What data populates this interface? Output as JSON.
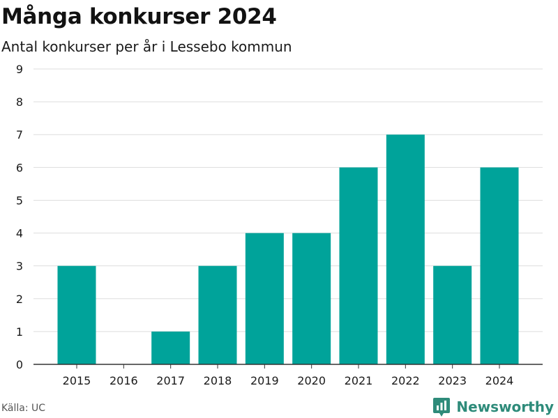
{
  "header": {
    "title": "Många konkurser 2024",
    "subtitle": "Antal konkurser per år i Lessebo kommun"
  },
  "footer": {
    "source": "Källa: UC",
    "brand": "Newsworthy",
    "brand_icon": "bar-chart-logo-icon"
  },
  "colors": {
    "bar": "#00a39a",
    "grid": "#dddddd",
    "axis": "#333333",
    "brand": "#2e8b7a"
  },
  "chart_data": {
    "type": "bar",
    "title": "Många konkurser 2024",
    "subtitle": "Antal konkurser per år i Lessebo kommun",
    "categories": [
      "2015",
      "2016",
      "2017",
      "2018",
      "2019",
      "2020",
      "2021",
      "2022",
      "2023",
      "2024"
    ],
    "values": [
      3,
      0,
      1,
      3,
      4,
      4,
      6,
      7,
      3,
      6
    ],
    "yticks": [
      0,
      1,
      2,
      3,
      4,
      5,
      6,
      7,
      8,
      9
    ],
    "ylim": [
      0,
      9
    ],
    "xlabel": "",
    "ylabel": "",
    "grid": true,
    "legend": "none"
  }
}
